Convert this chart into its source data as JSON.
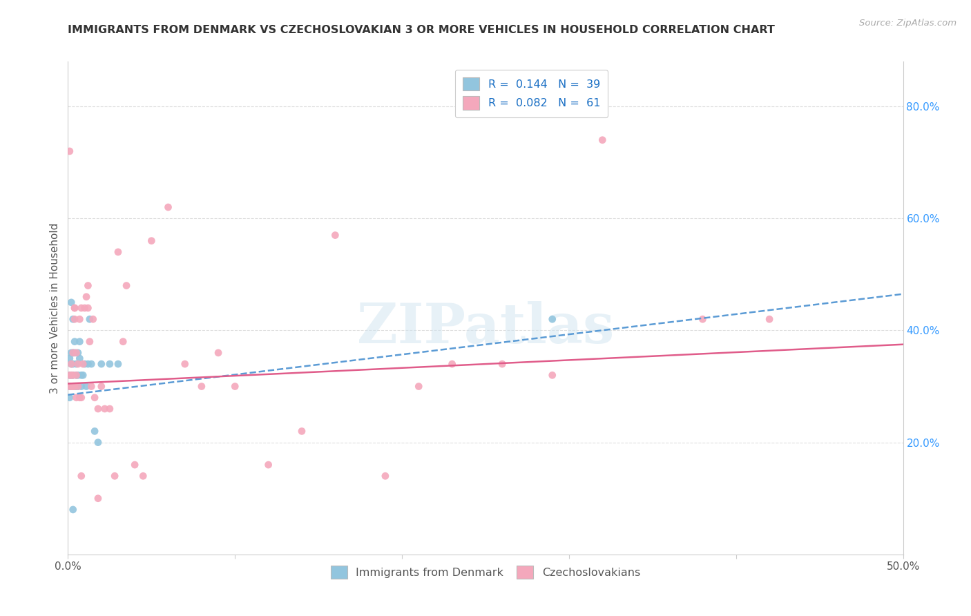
{
  "title": "IMMIGRANTS FROM DENMARK VS CZECHOSLOVAKIAN 3 OR MORE VEHICLES IN HOUSEHOLD CORRELATION CHART",
  "source": "Source: ZipAtlas.com",
  "ylabel": "3 or more Vehicles in Household",
  "yaxis_labels": [
    "20.0%",
    "40.0%",
    "60.0%",
    "80.0%"
  ],
  "yaxis_values": [
    0.2,
    0.4,
    0.6,
    0.8
  ],
  "legend1_label": "R =  0.144   N =  39",
  "legend2_label": "R =  0.082   N =  61",
  "legend_bottom1": "Immigrants from Denmark",
  "legend_bottom2": "Czechoslovakians",
  "blue_color": "#92c5de",
  "pink_color": "#f4a8bc",
  "blue_line_color": "#5b9bd5",
  "pink_line_color": "#e05c8a",
  "xlim": [
    0.0,
    0.5
  ],
  "ylim": [
    0.0,
    0.88
  ],
  "watermark": "ZIPatlas",
  "background_color": "#ffffff",
  "denmark_x": [
    0.001,
    0.001,
    0.001,
    0.001,
    0.002,
    0.002,
    0.002,
    0.002,
    0.002,
    0.003,
    0.003,
    0.003,
    0.003,
    0.004,
    0.004,
    0.004,
    0.005,
    0.005,
    0.005,
    0.006,
    0.006,
    0.006,
    0.007,
    0.007,
    0.008,
    0.008,
    0.009,
    0.01,
    0.011,
    0.012,
    0.013,
    0.014,
    0.016,
    0.018,
    0.02,
    0.025,
    0.03,
    0.29,
    0.003
  ],
  "denmark_y": [
    0.32,
    0.35,
    0.3,
    0.28,
    0.36,
    0.34,
    0.32,
    0.3,
    0.45,
    0.36,
    0.34,
    0.32,
    0.42,
    0.38,
    0.36,
    0.3,
    0.34,
    0.3,
    0.32,
    0.36,
    0.3,
    0.32,
    0.38,
    0.35,
    0.32,
    0.3,
    0.32,
    0.34,
    0.3,
    0.34,
    0.42,
    0.34,
    0.22,
    0.2,
    0.34,
    0.34,
    0.34,
    0.42,
    0.08
  ],
  "czech_x": [
    0.001,
    0.001,
    0.001,
    0.002,
    0.002,
    0.002,
    0.003,
    0.003,
    0.003,
    0.004,
    0.004,
    0.004,
    0.005,
    0.005,
    0.005,
    0.006,
    0.006,
    0.007,
    0.007,
    0.008,
    0.008,
    0.009,
    0.01,
    0.011,
    0.012,
    0.013,
    0.014,
    0.015,
    0.016,
    0.018,
    0.02,
    0.022,
    0.025,
    0.028,
    0.03,
    0.033,
    0.035,
    0.04,
    0.045,
    0.05,
    0.06,
    0.07,
    0.08,
    0.09,
    0.1,
    0.12,
    0.14,
    0.16,
    0.19,
    0.21,
    0.23,
    0.26,
    0.29,
    0.32,
    0.38,
    0.42,
    0.004,
    0.008,
    0.012,
    0.018,
    0.003
  ],
  "czech_y": [
    0.3,
    0.32,
    0.72,
    0.34,
    0.3,
    0.32,
    0.36,
    0.3,
    0.32,
    0.44,
    0.42,
    0.3,
    0.36,
    0.32,
    0.28,
    0.34,
    0.3,
    0.42,
    0.28,
    0.44,
    0.28,
    0.34,
    0.44,
    0.46,
    0.44,
    0.38,
    0.3,
    0.42,
    0.28,
    0.26,
    0.3,
    0.26,
    0.26,
    0.14,
    0.54,
    0.38,
    0.48,
    0.16,
    0.14,
    0.56,
    0.62,
    0.34,
    0.3,
    0.36,
    0.3,
    0.16,
    0.22,
    0.57,
    0.14,
    0.3,
    0.34,
    0.34,
    0.32,
    0.74,
    0.42,
    0.42,
    0.44,
    0.14,
    0.48,
    0.1,
    0.3
  ],
  "dk_line_x": [
    0.0,
    0.5
  ],
  "dk_line_y": [
    0.285,
    0.465
  ],
  "cz_line_x": [
    0.0,
    0.5
  ],
  "cz_line_y": [
    0.305,
    0.375
  ]
}
